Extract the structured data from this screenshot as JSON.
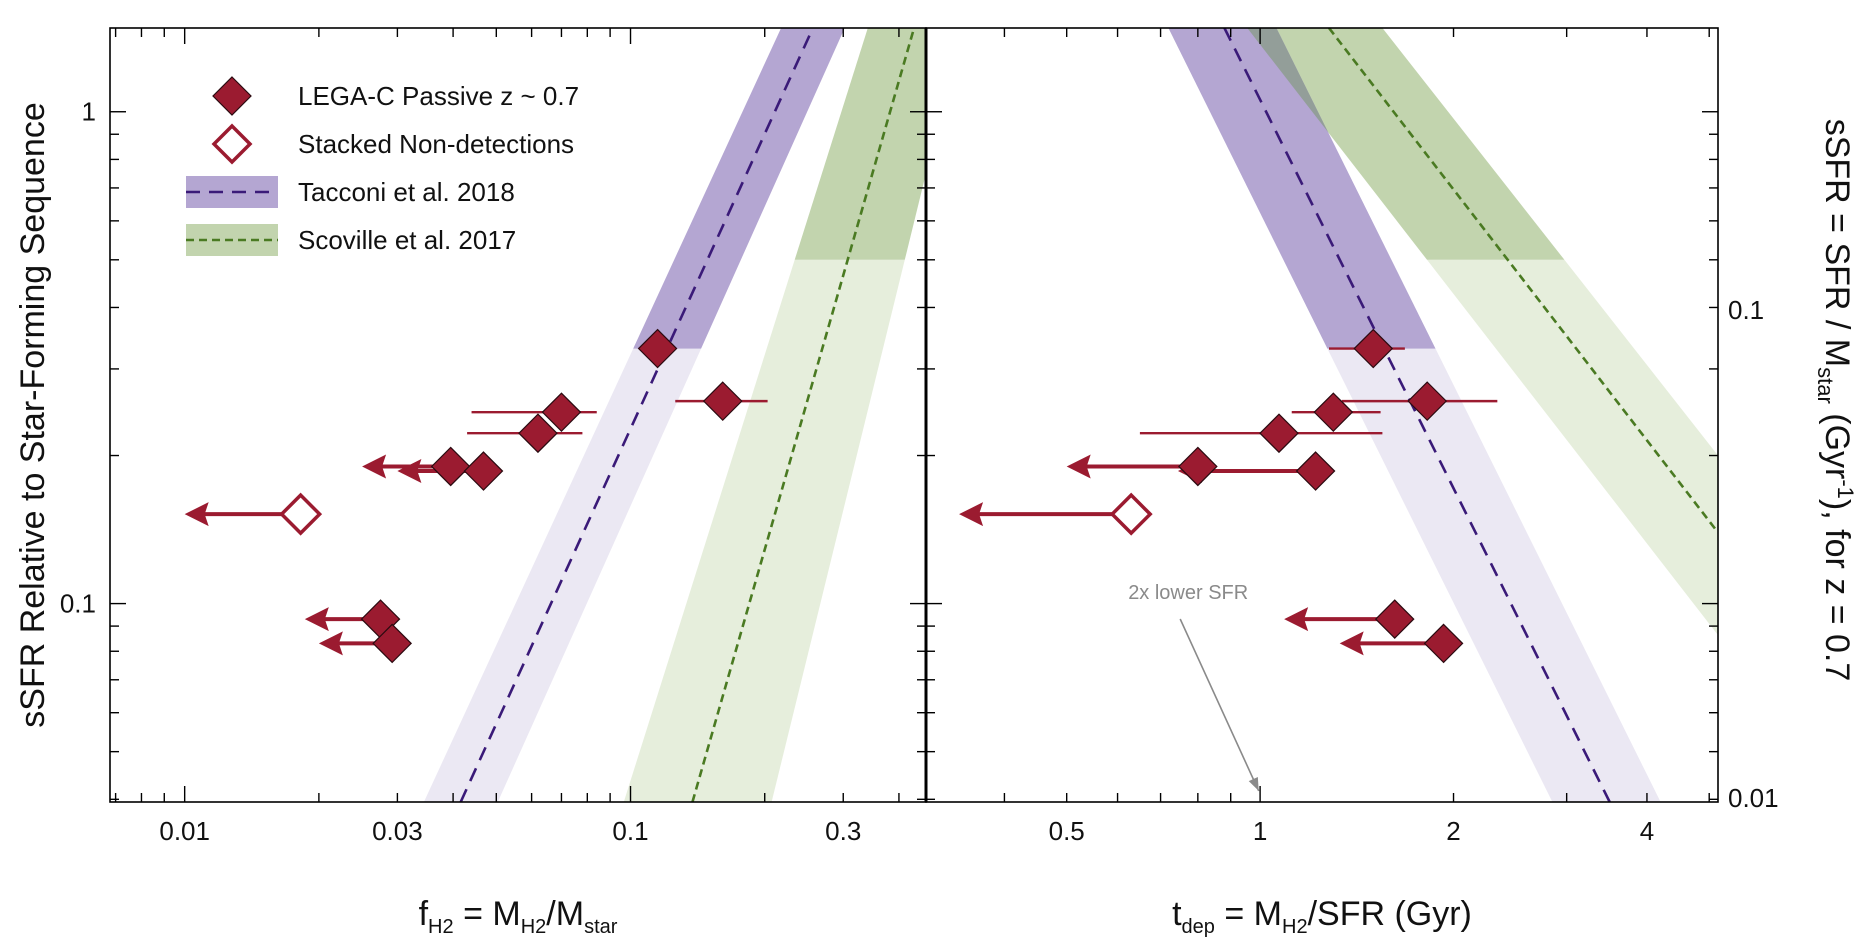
{
  "chart_data": [
    {
      "type": "scatter",
      "panel": "left",
      "x_scale": "log",
      "y_scale": "log",
      "xlim": [
        0.0068,
        0.46
      ],
      "ylim": [
        0.0395,
        1.48
      ],
      "x_ticks": [
        0.01,
        0.03,
        0.1,
        0.3
      ],
      "x_tick_labels": [
        "0.01",
        "0.03",
        "0.1",
        "0.3"
      ],
      "y_ticks": [
        0.1,
        1
      ],
      "y_tick_labels": [
        "0.1",
        "1"
      ],
      "xlabel": {
        "main": "f",
        "sub": "H2",
        "eq": " = M",
        "sub2": "H2",
        "rest": "/M",
        "sub3": "star"
      },
      "ylabel": "sSFR Relative to Star-Forming Sequence",
      "legend": {
        "location": "top-left",
        "entries": [
          {
            "label": "LEGA-C Passive z ~ 0.7",
            "marker": "filled-diamond"
          },
          {
            "label": "Stacked Non-detections",
            "marker": "open-diamond"
          },
          {
            "label": "Tacconi et al. 2018",
            "marker": "dashed-band"
          },
          {
            "label": "Scoville et al. 2017",
            "marker": "dashed-band"
          }
        ]
      },
      "detections": [
        {
          "x": 0.115,
          "y": 0.33
        },
        {
          "x": 0.07,
          "y": 0.245,
          "xerr": [
            0.026,
            0.014
          ]
        },
        {
          "x": 0.062,
          "y": 0.222,
          "xerr": [
            0.019,
            0.016
          ]
        },
        {
          "x": 0.161,
          "y": 0.258,
          "xerr": [
            0.035,
            0.042
          ]
        }
      ],
      "upper_limits": [
        {
          "x": 0.0395,
          "y": 0.19,
          "x_to": 0.025
        },
        {
          "x": 0.0468,
          "y": 0.186,
          "x_to": 0.03
        },
        {
          "x": 0.0275,
          "y": 0.093,
          "x_to": 0.0186
        },
        {
          "x": 0.0292,
          "y": 0.083,
          "x_to": 0.02
        }
      ],
      "stacked": [
        {
          "x": 0.0182,
          "y": 0.152,
          "x_to": 0.01
        }
      ],
      "relations": [
        {
          "name": "Tacconi et al. 2018",
          "color": "#3a1a78",
          "line": [
            [
              0.0416,
              0.0395
            ],
            [
              0.2565,
              1.48
            ]
          ],
          "band_left": [
            [
              0.0344,
              0.0395
            ],
            [
              0.2177,
              1.48
            ]
          ],
          "band_right": [
            [
              0.0504,
              0.0395
            ],
            [
              0.3023,
              1.48
            ]
          ],
          "band_break_y": 0.33
        },
        {
          "name": "Scoville et al. 2017",
          "color": "#4a7a22",
          "line": [
            [
              0.1377,
              0.0395
            ],
            [
              0.4325,
              1.48
            ]
          ],
          "band_left": [
            [
              0.0966,
              0.0395
            ],
            [
              0.3405,
              1.48
            ]
          ],
          "band_right": [
            [
              0.2072,
              0.0395
            ],
            [
              0.5531,
              1.48
            ]
          ],
          "band_break_y": 0.5
        }
      ]
    },
    {
      "type": "scatter",
      "panel": "right",
      "x_scale": "log",
      "y_scale": "log",
      "xlim": [
        0.302,
        5.16
      ],
      "ylim": [
        0.0395,
        1.48
      ],
      "x_ticks": [
        0.5,
        1,
        2,
        4
      ],
      "x_tick_labels": [
        "0.5",
        "1",
        "2",
        "4"
      ],
      "xlabel": {
        "main": "t",
        "sub": "dep",
        "eq": " = M",
        "sub2": "H2",
        "rest": "/SFR (Gyr)"
      },
      "y2_ticks": [
        0.01,
        0.1
      ],
      "y2_tick_labels": [
        "0.01",
        "0.1"
      ],
      "y2label": {
        "pre": "sSFR = SFR / M",
        "sub": "star",
        "mid": " (Gyr",
        "sup": "-1",
        "post": "), for z = 0.7"
      },
      "annotation": {
        "text": "2x lower SFR",
        "arrow_from": [
          0.735,
          0.0975
        ],
        "arrow_to": [
          0.995,
          0.0416
        ]
      },
      "detections": [
        {
          "x": 1.5,
          "y": 0.33,
          "xerr": [
            0.22,
            0.18
          ]
        },
        {
          "x": 1.3,
          "y": 0.245,
          "xerr": [
            0.18,
            0.24
          ]
        },
        {
          "x": 1.07,
          "y": 0.222,
          "xerr": [
            0.42,
            0.48
          ]
        },
        {
          "x": 1.82,
          "y": 0.258,
          "xerr": [
            0.48,
            0.52
          ]
        }
      ],
      "upper_limits": [
        {
          "x": 0.8,
          "y": 0.19,
          "x_to": 0.5
        },
        {
          "x": 1.22,
          "y": 0.186,
          "x_to": 0.745
        },
        {
          "x": 1.62,
          "y": 0.093,
          "x_to": 1.09
        },
        {
          "x": 1.93,
          "y": 0.083,
          "x_to": 1.33
        }
      ],
      "stacked": [
        {
          "x": 0.63,
          "y": 0.152,
          "x_to": 0.34
        }
      ],
      "relations": [
        {
          "name": "Tacconi et al. 2018",
          "color": "#3a1a78",
          "line": [
            [
              0.88,
              1.48
            ],
            [
              3.5,
              0.0395
            ]
          ],
          "band_left": [
            [
              0.72,
              1.48
            ],
            [
              2.85,
              0.0395
            ]
          ],
          "band_right": [
            [
              1.06,
              1.48
            ],
            [
              4.2,
              0.0395
            ]
          ],
          "band_break_y": 0.33
        },
        {
          "name": "Scoville et al. 2017",
          "color": "#4a7a22",
          "line": [
            [
              1.28,
              1.48
            ],
            [
              5.16,
              0.1395
            ]
          ],
          "band_left": [
            [
              0.955,
              1.48
            ],
            [
              5.16,
              0.0863
            ]
          ],
          "band_right": [
            [
              1.55,
              1.48
            ],
            [
              5.16,
              0.2
            ]
          ],
          "band_break_y": 0.5
        }
      ]
    }
  ],
  "colors": {
    "marker": "#9b1b30",
    "tacconi_band": "#b4a6d2",
    "tacconi_band_light": "#ebe8f3",
    "tacconi_line": "#3a1a78",
    "scoville_band": "#c2d4ae",
    "scoville_band_light": "#e6eedc",
    "scoville_line": "#4a7a22",
    "overlap": "#939e99"
  }
}
